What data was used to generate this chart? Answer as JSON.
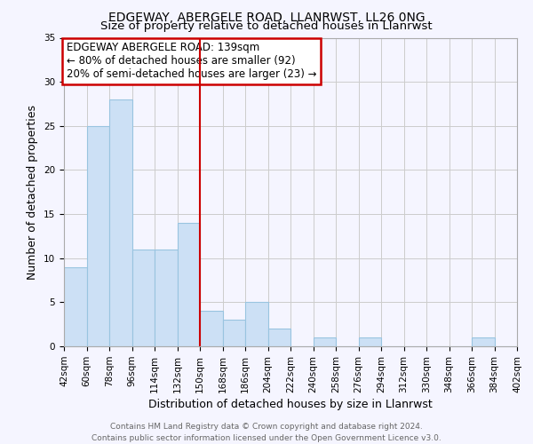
{
  "title": "EDGEWAY, ABERGELE ROAD, LLANRWST, LL26 0NG",
  "subtitle": "Size of property relative to detached houses in Llanrwst",
  "xlabel": "Distribution of detached houses by size in Llanrwst",
  "ylabel": "Number of detached properties",
  "bar_color": "#cce0f5",
  "bar_edge_color": "#99c4e0",
  "vline_color": "#cc0000",
  "annotation_line1": "EDGEWAY ABERGELE ROAD: 139sqm",
  "annotation_line2": "← 80% of detached houses are smaller (92)",
  "annotation_line3": "20% of semi-detached houses are larger (23) →",
  "annotation_box_color": "white",
  "annotation_box_edge": "#cc0000",
  "bins": [
    42,
    60,
    78,
    96,
    114,
    132,
    150,
    168,
    186,
    204,
    222,
    240,
    258,
    276,
    294,
    312,
    330,
    348,
    366,
    384,
    402
  ],
  "counts": [
    9,
    25,
    28,
    11,
    11,
    14,
    4,
    3,
    5,
    2,
    0,
    1,
    0,
    1,
    0,
    0,
    0,
    0,
    1,
    0
  ],
  "ylim": [
    0,
    35
  ],
  "yticks": [
    0,
    5,
    10,
    15,
    20,
    25,
    30,
    35
  ],
  "footer_line1": "Contains HM Land Registry data © Crown copyright and database right 2024.",
  "footer_line2": "Contains public sector information licensed under the Open Government Licence v3.0.",
  "background_color": "#f5f5ff",
  "grid_color": "#cccccc",
  "title_fontsize": 10,
  "subtitle_fontsize": 9.5,
  "axis_label_fontsize": 9,
  "tick_fontsize": 7.5,
  "footer_fontsize": 6.5,
  "annotation_fontsize": 8.5
}
